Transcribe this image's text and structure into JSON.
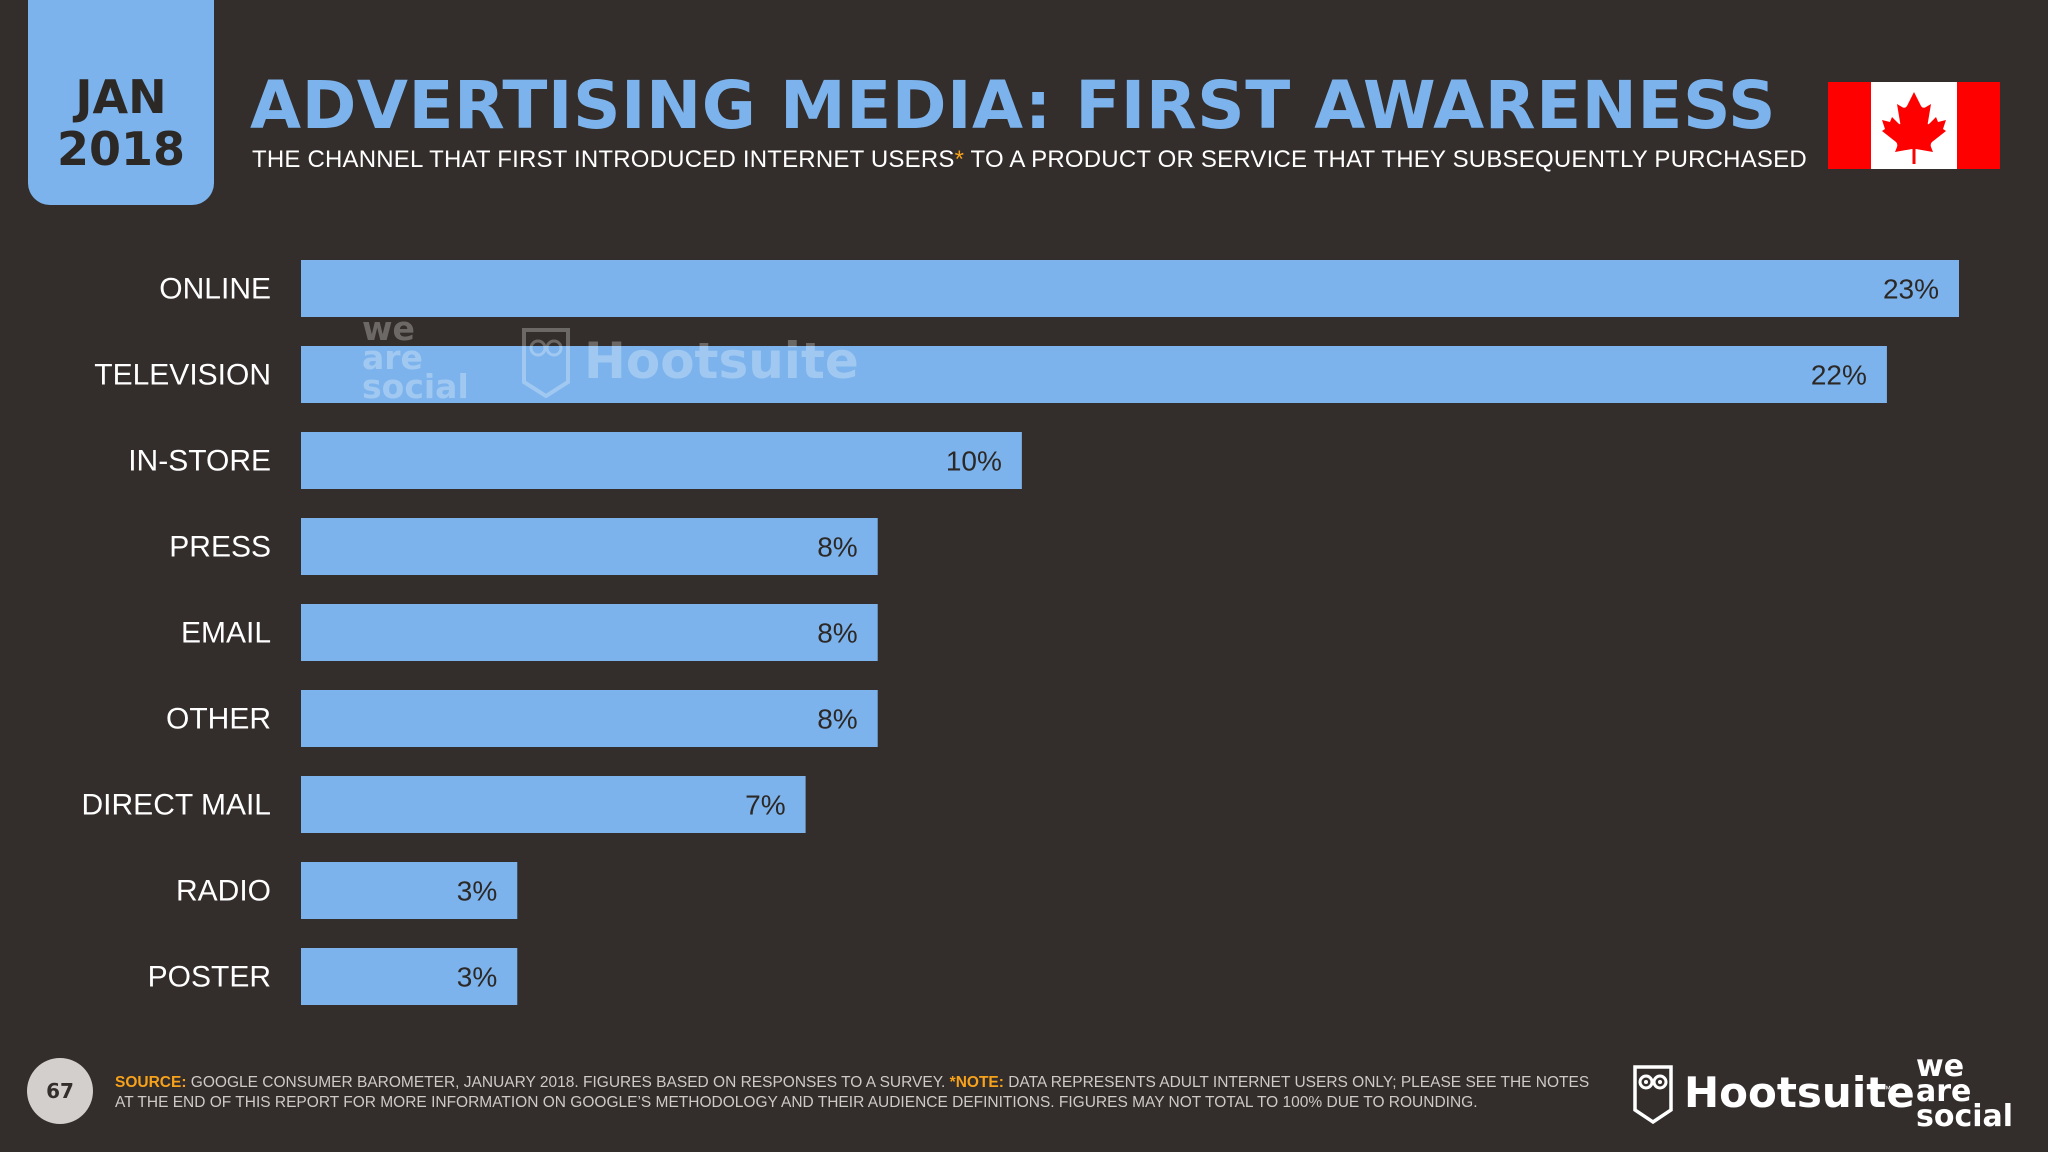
{
  "header": {
    "month": "JAN",
    "year": "2018",
    "title": "ADVERTISING MEDIA: FIRST AWARENESS",
    "subtitle_before": "THE CHANNEL THAT FIRST INTRODUCED INTERNET USERS",
    "subtitle_asterisk": "*",
    "subtitle_after": " TO A PRODUCT OR SERVICE THAT THEY SUBSEQUENTLY PURCHASED"
  },
  "flag": {
    "country_icon": "canada-flag-icon",
    "red": "#ff0000",
    "white": "#ffffff"
  },
  "watermark": {
    "we": "we",
    "are": "are",
    "social": "social",
    "hootsuite": "Hootsuite"
  },
  "chart_data": {
    "type": "bar",
    "orientation": "horizontal",
    "categories": [
      "ONLINE",
      "TELEVISION",
      "IN-STORE",
      "PRESS",
      "EMAIL",
      "OTHER",
      "DIRECT MAIL",
      "RADIO",
      "POSTER"
    ],
    "values": [
      23,
      22,
      10,
      8,
      8,
      8,
      7,
      3,
      3
    ],
    "value_labels": [
      "23%",
      "22%",
      "10%",
      "8%",
      "8%",
      "8%",
      "7%",
      "3%",
      "3%"
    ],
    "unit": "%",
    "xlim": [
      0,
      23
    ],
    "grid": false,
    "legend": "none",
    "bar_color": "#7cb3ec",
    "label_color": "#ffffff",
    "value_label_color": "#2c2826"
  },
  "footer": {
    "page_number": "67",
    "source_label": "SOURCE:",
    "source_text": " GOOGLE CONSUMER BAROMETER, JANUARY 2018. FIGURES BASED ON RESPONSES TO A SURVEY. ",
    "note_label": "*NOTE:",
    "note_text": " DATA REPRESENTS ADULT INTERNET USERS ONLY; PLEASE SEE THE NOTES AT THE END OF THIS REPORT FOR MORE INFORMATION ON GOOGLE’S METHODOLOGY AND THEIR AUDIENCE DEFINITIONS. FIGURES MAY NOT TOTAL TO 100% DUE TO ROUNDING.",
    "hootsuite": "Hootsuite",
    "hootsuite_tm": "™",
    "we": "we",
    "are": "are",
    "social": "social"
  },
  "colors": {
    "background": "#332d2b",
    "accent": "#7cb3ec",
    "note": "#f7a21b"
  }
}
